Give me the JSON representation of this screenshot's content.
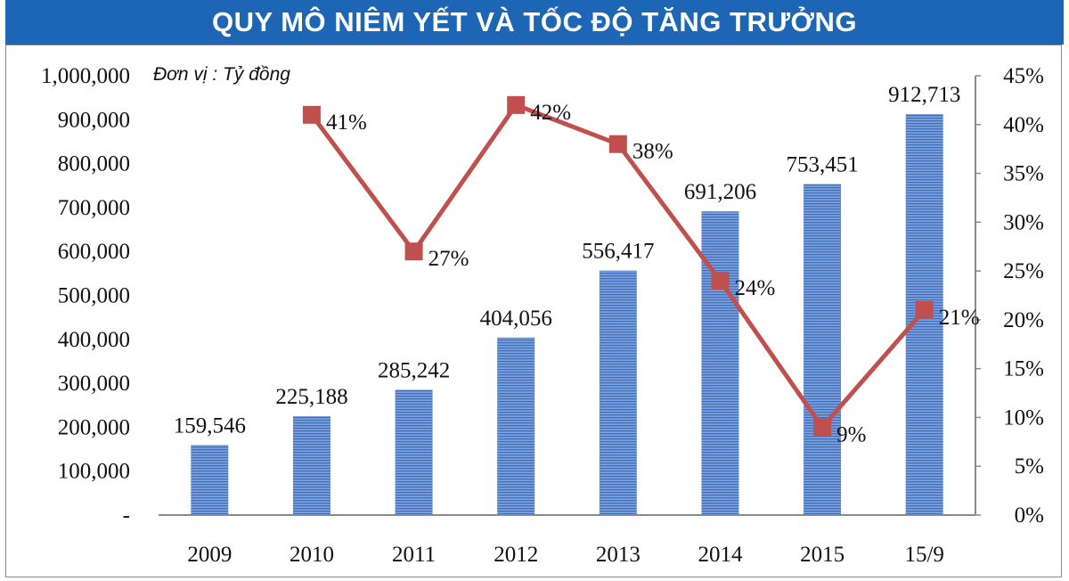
{
  "title": "QUY MÔ NIÊM YẾT VÀ TỐC ĐỘ TĂNG TRƯỞNG",
  "chart_data": {
    "type": "bar",
    "unit_note": "Đơn vị : Tỷ đồng",
    "categories": [
      "2009",
      "2010",
      "2011",
      "2012",
      "2013",
      "2014",
      "2015",
      "15/9"
    ],
    "series": [
      {
        "values": [
          159546,
          225188,
          285242,
          404056,
          556417,
          691206,
          753451,
          912713
        ],
        "value_labels": [
          "159,546",
          "225,188",
          "285,242",
          "404,056",
          "556,417",
          "691,206",
          "753,451",
          "912,713"
        ],
        "type": "bar",
        "axis": "left",
        "color": "#5b86c9"
      },
      {
        "values": [
          null,
          41,
          27,
          42,
          38,
          24,
          9,
          21
        ],
        "value_labels": [
          "",
          "41%",
          "27%",
          "42%",
          "38%",
          "24%",
          "9%",
          "21%"
        ],
        "type": "line",
        "axis": "right",
        "color": "#c0504d"
      }
    ],
    "left_axis": {
      "ylim": [
        0,
        1000000
      ],
      "ticks": [
        "-",
        "100,000",
        "200,000",
        "300,000",
        "400,000",
        "500,000",
        "600,000",
        "700,000",
        "800,000",
        "900,000",
        "1,000,000"
      ]
    },
    "right_axis": {
      "ylim": [
        0,
        45
      ],
      "ticks": [
        "0%",
        "5%",
        "10%",
        "15%",
        "20%",
        "25%",
        "30%",
        "35%",
        "40%",
        "45%"
      ]
    },
    "grid": false,
    "legend": "none"
  }
}
